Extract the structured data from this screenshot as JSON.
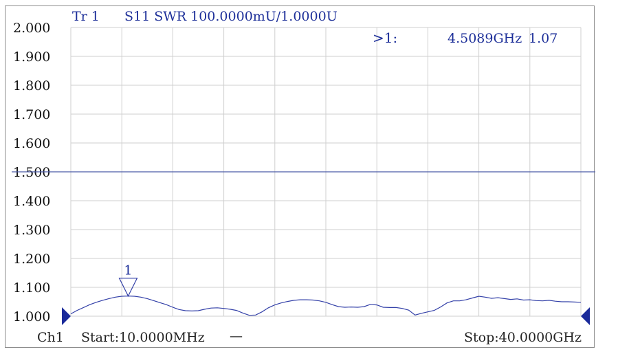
{
  "header": {
    "trace": "Tr 1",
    "measurement": "S11 SWR 100.0000mU/1.0000U"
  },
  "marker_readout": {
    "label": ">1:",
    "frequency": "4.5089GHz",
    "value": "1.07"
  },
  "footer": {
    "channel": "Ch1",
    "start": "Start:10.0000MHz",
    "separator": "—",
    "stop": "Stop:40.0000GHz"
  },
  "colors": {
    "trace": "#3340a8",
    "reference_line": "#4a5aa8",
    "grid": "#cfcfcf",
    "text": "#1d2f99",
    "pointer": "#1a2a9a"
  },
  "chart_data": {
    "type": "line",
    "x_unit": "GHz",
    "x_range": [
      0.01,
      40.0
    ],
    "ylim": [
      1.0,
      2.0
    ],
    "y_ticks": [
      "2.000",
      "1.900",
      "1.800",
      "1.700",
      "1.600",
      "1.500",
      "1.400",
      "1.300",
      "1.200",
      "1.100",
      "1.000"
    ],
    "reference_level": 1.5,
    "grid": true,
    "marker": {
      "id": "1",
      "x": 4.5089,
      "y": 1.07
    },
    "series": [
      {
        "x": [
          0.01,
          0.5,
          1.0,
          1.5,
          2.0,
          2.5,
          3.0,
          3.5,
          4.0,
          4.5,
          5.0,
          5.5,
          6.0,
          6.5,
          7.0,
          7.5,
          8.0,
          8.5,
          9.0,
          9.5,
          10.0,
          10.5,
          11.0,
          11.5,
          12.0,
          12.5,
          13.0,
          13.5,
          14.0,
          14.5,
          15.0,
          15.5,
          16.0,
          16.5,
          17.0,
          17.5,
          18.0,
          18.5,
          19.0,
          19.5,
          20.0,
          20.5,
          21.0,
          21.5,
          22.0,
          22.5,
          23.0,
          23.5,
          24.0,
          24.5,
          25.0,
          25.5,
          26.0,
          26.5,
          27.0,
          27.5,
          28.0,
          28.5,
          29.0,
          29.5,
          30.0,
          30.5,
          31.0,
          31.5,
          32.0,
          32.5,
          33.0,
          33.5,
          34.0,
          34.5,
          35.0,
          35.5,
          36.0,
          36.5,
          37.0,
          37.5,
          38.0,
          38.5,
          39.0,
          39.5,
          40.0
        ],
        "values": [
          1.008,
          1.02,
          1.03,
          1.04,
          1.048,
          1.055,
          1.061,
          1.066,
          1.069,
          1.07,
          1.069,
          1.066,
          1.061,
          1.054,
          1.047,
          1.04,
          1.031,
          1.023,
          1.019,
          1.018,
          1.019,
          1.024,
          1.028,
          1.029,
          1.027,
          1.024,
          1.02,
          1.011,
          1.003,
          1.004,
          1.015,
          1.029,
          1.039,
          1.046,
          1.051,
          1.055,
          1.057,
          1.057,
          1.056,
          1.053,
          1.048,
          1.04,
          1.033,
          1.031,
          1.032,
          1.031,
          1.033,
          1.041,
          1.039,
          1.031,
          1.03,
          1.03,
          1.027,
          1.021,
          1.004,
          1.01,
          1.015,
          1.02,
          1.032,
          1.046,
          1.053,
          1.053,
          1.057,
          1.063,
          1.069,
          1.066,
          1.062,
          1.064,
          1.061,
          1.058,
          1.06,
          1.056,
          1.057,
          1.054,
          1.053,
          1.055,
          1.052,
          1.05,
          1.05,
          1.049,
          1.048
        ]
      }
    ]
  }
}
